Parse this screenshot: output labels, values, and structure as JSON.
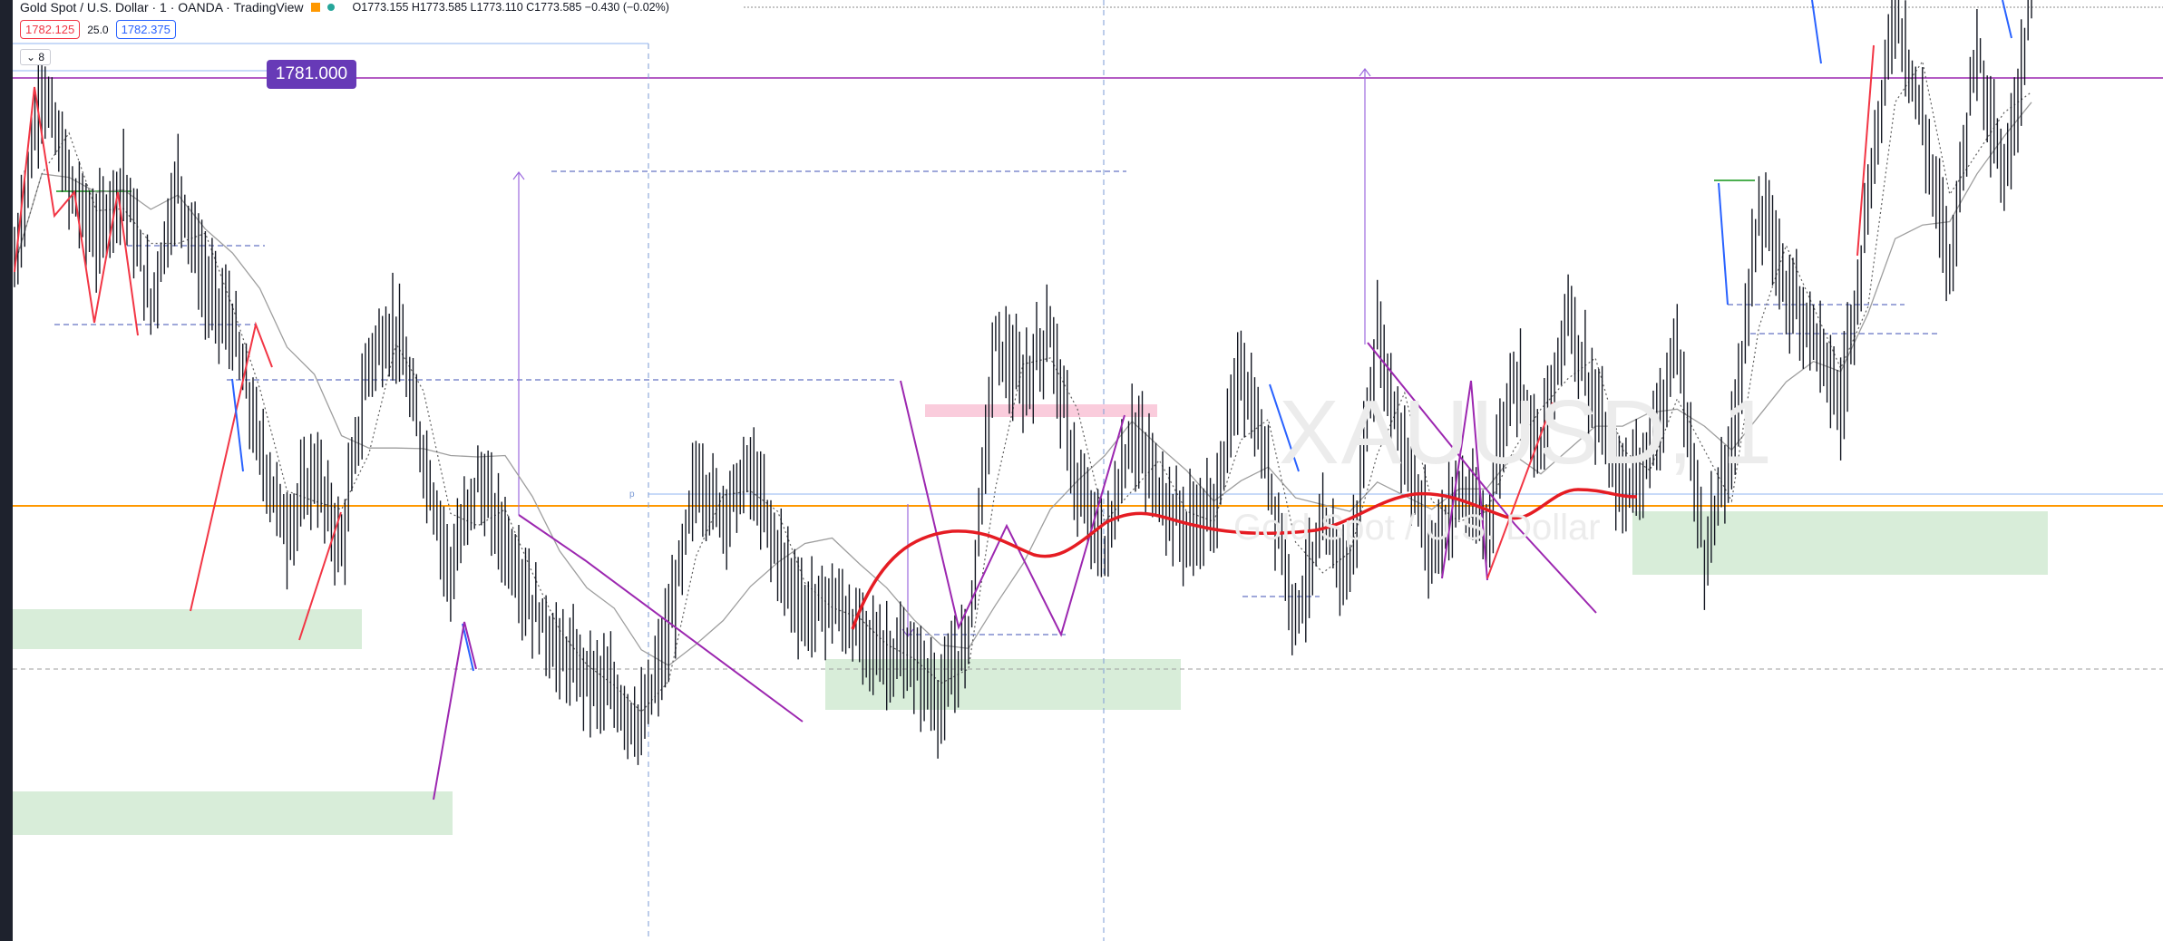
{
  "header": {
    "title": "Gold Spot / U.S. Dollar · 1 · OANDA · TradingView",
    "ohlc": "O1773.155 H1773.585 L1773.110 C1773.585 −0.430 (−0.02%)"
  },
  "quote": {
    "bid": "1782.125",
    "spread": "25.0",
    "ask": "1782.375"
  },
  "indicators_toggle": "8",
  "price_label": "1781.000",
  "watermark": {
    "symbol": "XAUUSD, 1",
    "description": "Gold Spot / U.S. Dollar"
  },
  "colors": {
    "background": "#ffffff",
    "candle": "#131722",
    "zigzag_up": "#f23645",
    "zigzag_down": "#2962ff",
    "pattern": "#9c27b0",
    "smooth_line": "#e51c23",
    "demand_zone": "#c8e6c9",
    "supply_zone": "#f8bbd0",
    "price_line": "#9c27b0",
    "level_line": "#ff9800",
    "price_label_bg": "#673ab7"
  },
  "chart_data": {
    "type": "line",
    "title": "",
    "ylim": [
      1761,
      1784
    ],
    "series": [
      {
        "values": [
          1777.5,
          1782.0,
          1779.5,
          1778.2,
          1779.6,
          1776.5,
          1779.6,
          1777.0,
          1776.0,
          1773.0,
          1771.0,
          1772.5,
          1770.6,
          1775.2,
          1776.0,
          1772.9,
          1770.0,
          1772.3,
          1770.8,
          1769.2,
          1768.0,
          1767.5,
          1767.0,
          1766.2,
          1768.5,
          1772.3,
          1771.5,
          1772.5,
          1770.5,
          1769.0,
          1769.3,
          1768.5,
          1768.0,
          1767.8,
          1766.8,
          1768.5,
          1775.7,
          1774.5,
          1776.0,
          1772.0,
          1770.5,
          1773.5,
          1772.0,
          1771.0,
          1771.5,
          1775.0,
          1772.5,
          1769.0,
          1771.0,
          1770.0,
          1775.8,
          1773.0,
          1770.5,
          1772.0,
          1771.0,
          1775.0,
          1773.0,
          1776.5,
          1774.0,
          1772.0,
          1773.0,
          1775.5,
          1770.5,
          1773.0,
          1779.0,
          1777.0,
          1776.0,
          1774.0,
          1779.0,
          1784.0,
          1781.0,
          1777.5,
          1783.0,
          1779.5,
          1784.0
        ]
      }
    ]
  }
}
